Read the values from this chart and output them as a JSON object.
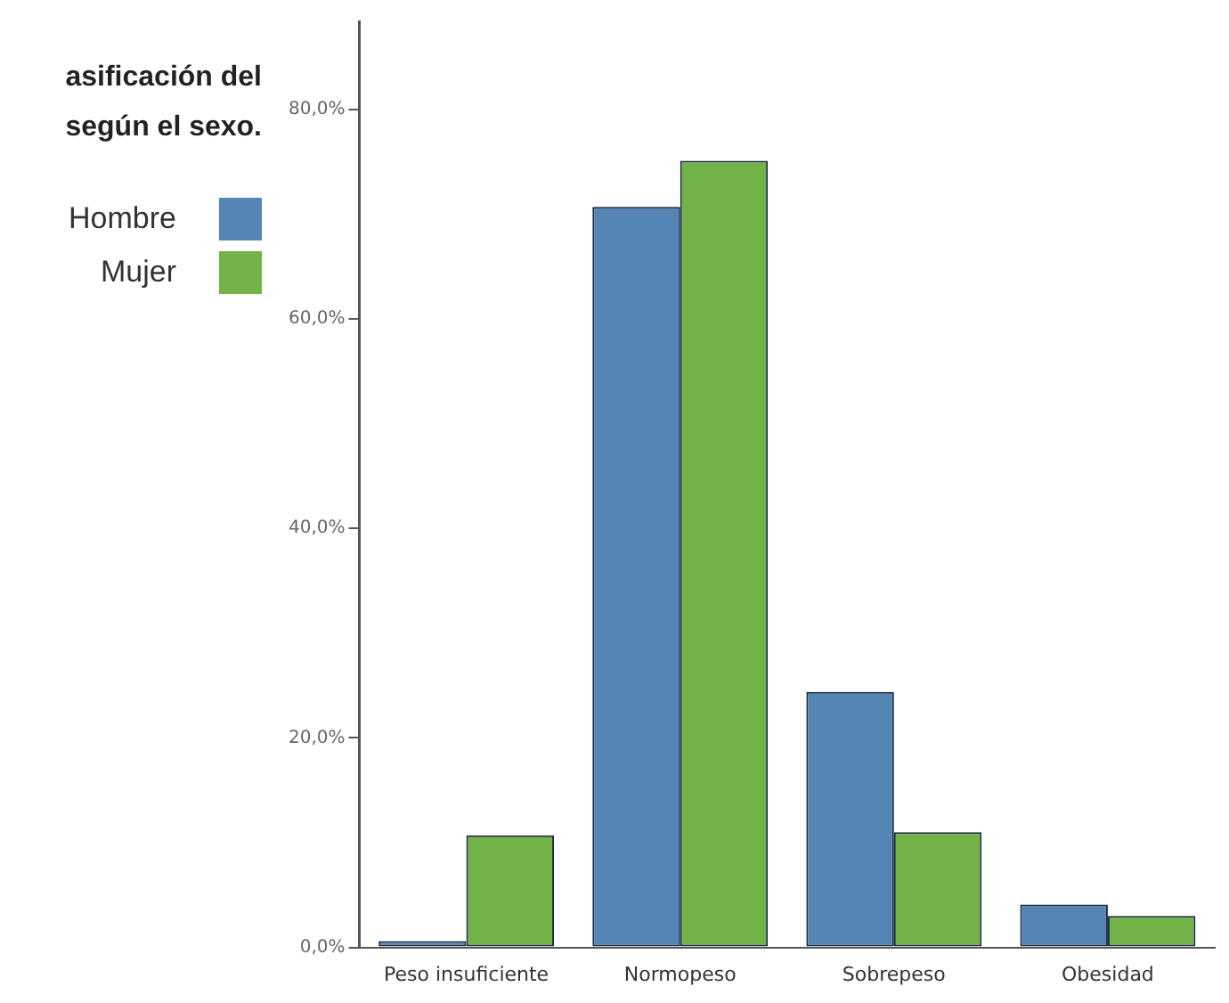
{
  "chart_data": {
    "type": "bar",
    "title": "asificación del\nsegún el sexo.",
    "categories": [
      "Peso insuficiente",
      "Normopeso",
      "Sobrepeso",
      "Obesidad"
    ],
    "series": [
      {
        "name": "Hombre",
        "color": "#5485b4",
        "values": [
          0.6,
          70.7,
          24.4,
          4.1
        ]
      },
      {
        "name": "Mujer",
        "color": "#72b347",
        "values": [
          10.7,
          75.1,
          11.0,
          3.0
        ]
      }
    ],
    "ylim": [
      0,
      88.4
    ],
    "yticks": [
      {
        "value": 0,
        "label": "0,0%"
      },
      {
        "value": 20,
        "label": "20,0%"
      },
      {
        "value": 40,
        "label": "40,0%"
      },
      {
        "value": 60,
        "label": "60,0%"
      },
      {
        "value": 80,
        "label": "80,0%"
      }
    ],
    "grid": false,
    "legend": "top left"
  }
}
